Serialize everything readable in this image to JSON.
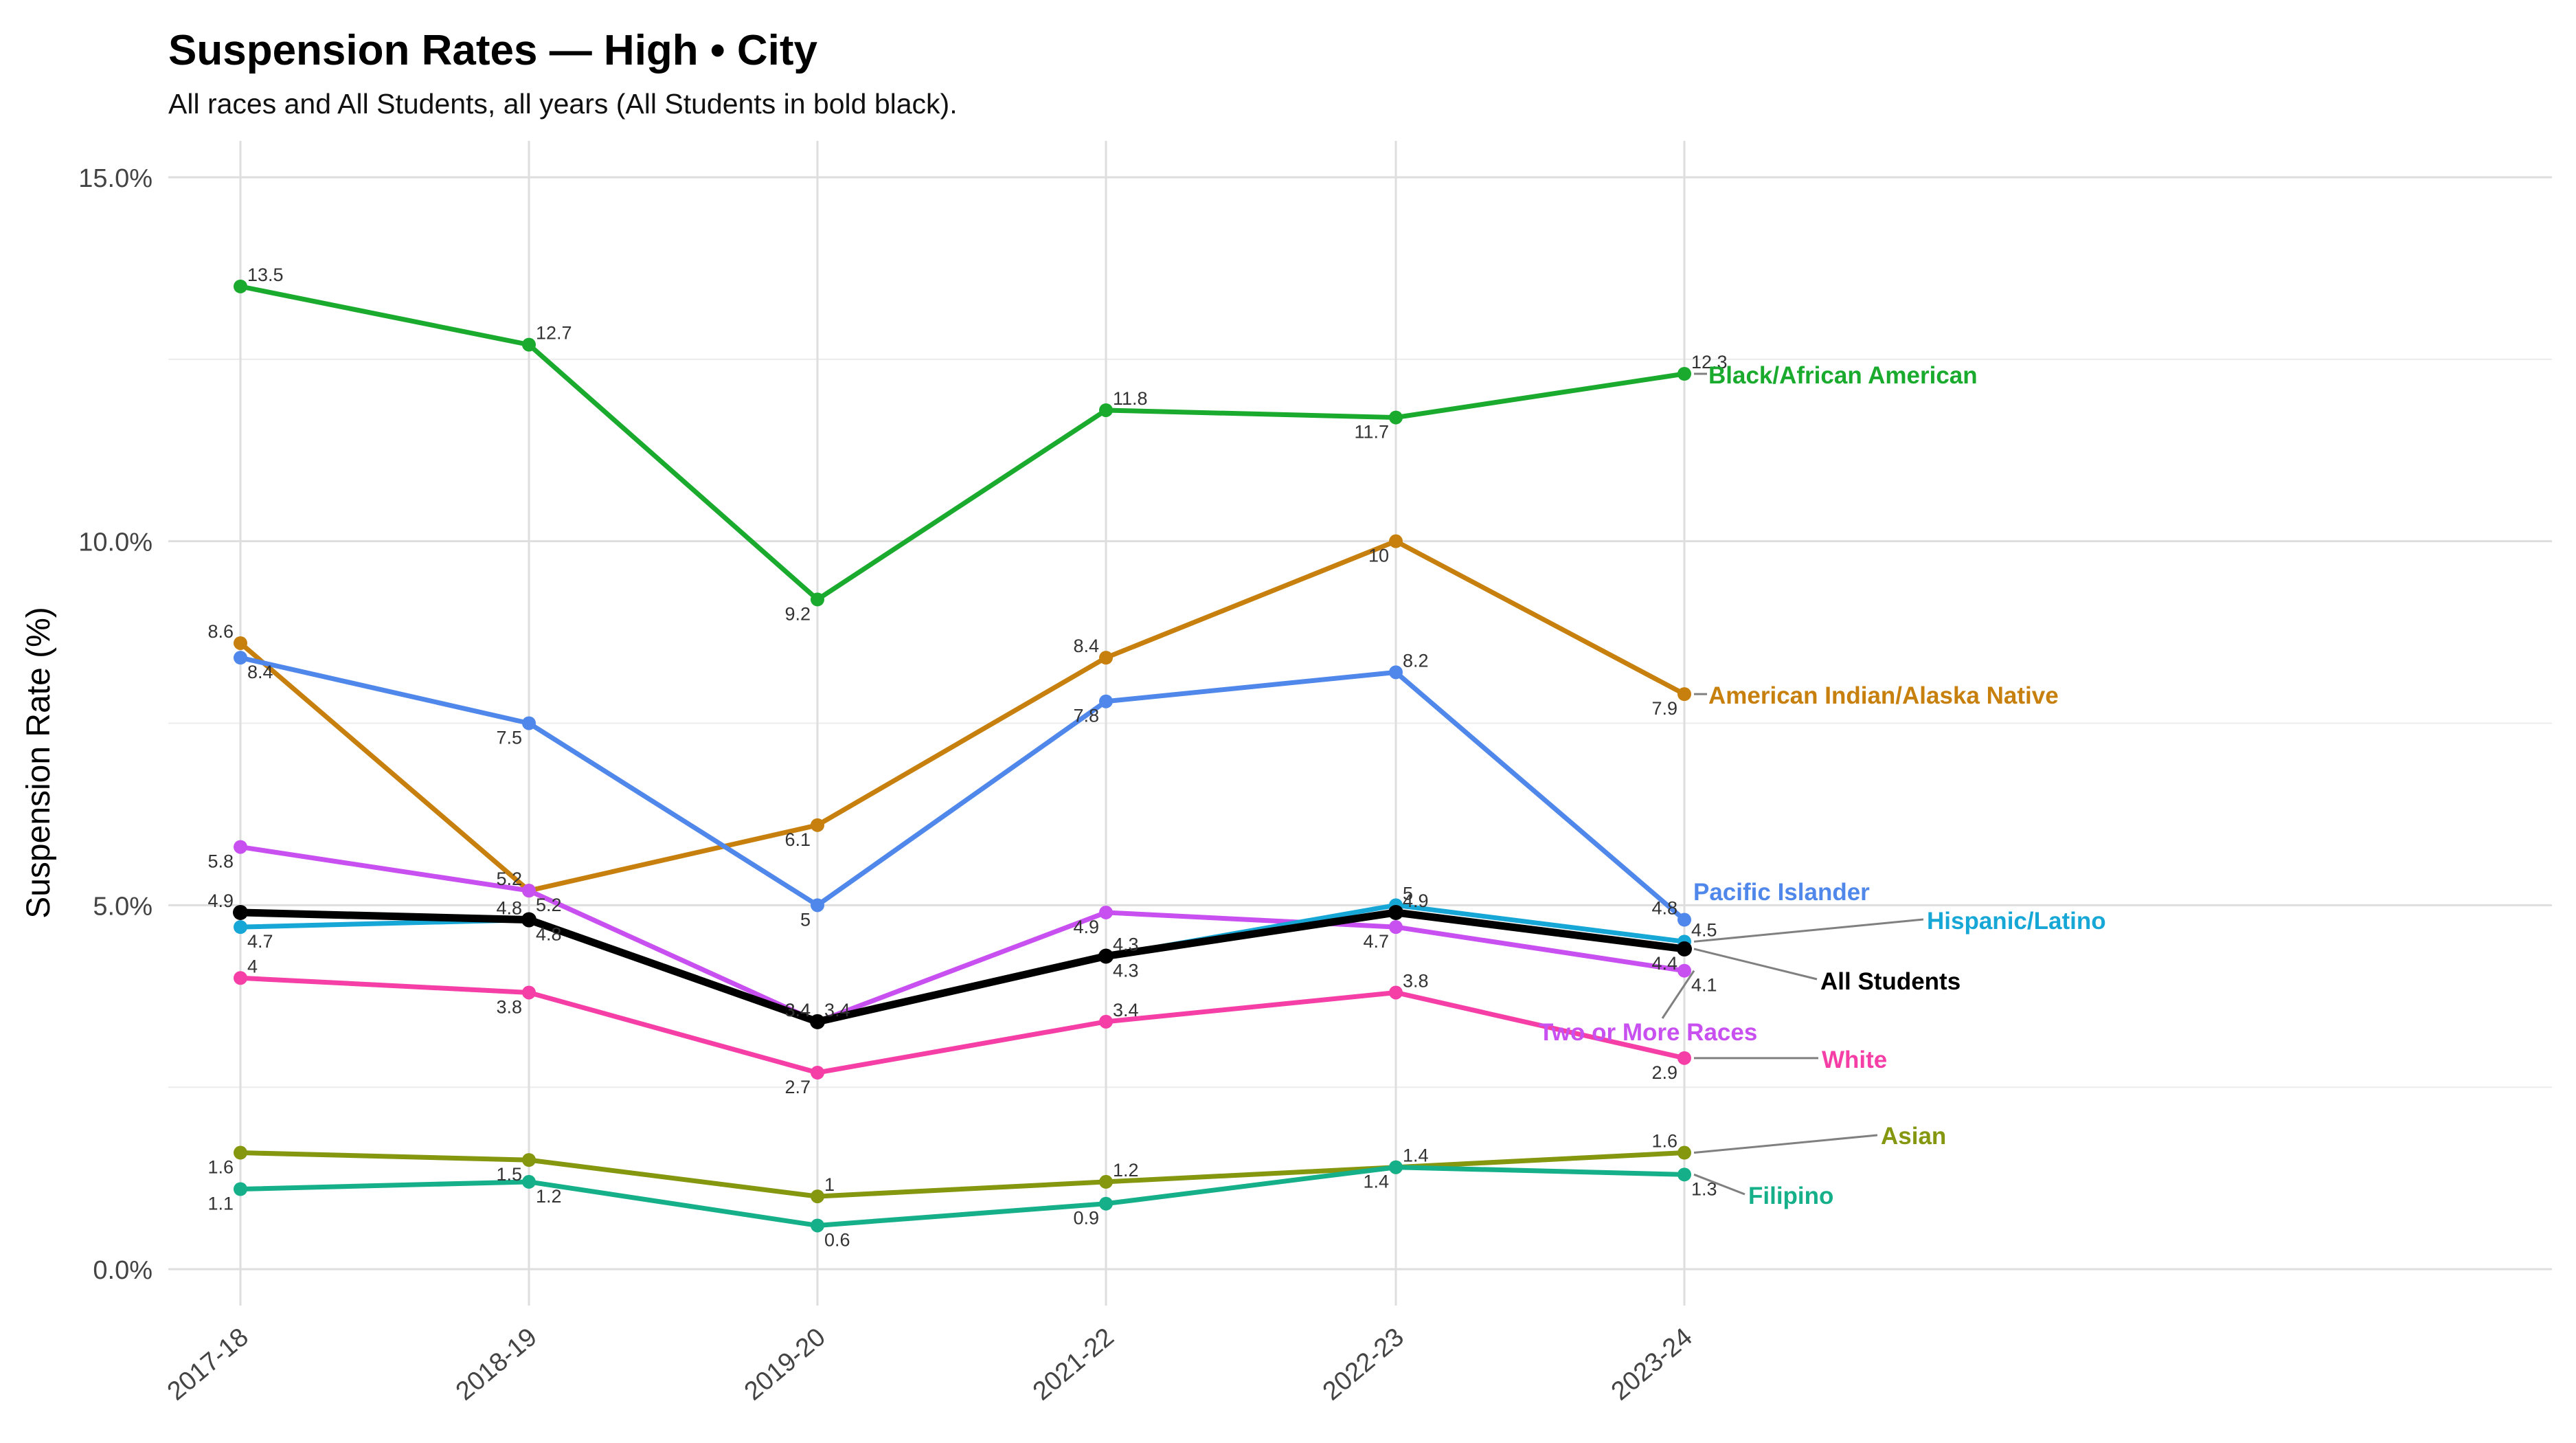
{
  "chart_data": {
    "type": "line",
    "title": "Suspension Rates — High • City",
    "subtitle": "All races and All Students, all years (All Students in bold black).",
    "xlabel": "",
    "ylabel": "Suspension Rate (%)",
    "categories": [
      "2017-18",
      "2018-19",
      "2019-20",
      "2021-22",
      "2022-23",
      "2023-24"
    ],
    "ylim": [
      -0.5,
      15.5
    ],
    "yticks": [
      0,
      5,
      10,
      15
    ],
    "ytick_labels": [
      "0.0%",
      "5.0%",
      "10.0%",
      "15.0%"
    ],
    "grid": true,
    "legend": "direct labels at line ends",
    "series": [
      {
        "name": "Black/African American",
        "color": "#1aab2e",
        "values": [
          13.5,
          12.7,
          9.2,
          11.8,
          11.7,
          12.3
        ]
      },
      {
        "name": "American Indian/Alaska Native",
        "color": "#c7800d",
        "values": [
          8.6,
          5.2,
          6.1,
          8.4,
          10,
          7.9
        ]
      },
      {
        "name": "Pacific Islander",
        "color": "#5087ea",
        "values": [
          8.4,
          7.5,
          5,
          7.8,
          8.2,
          4.8
        ]
      },
      {
        "name": "Two or More Races",
        "color": "#c84ff0",
        "values": [
          5.8,
          5.2,
          3.4,
          4.9,
          4.7,
          4.1
        ]
      },
      {
        "name": "Hispanic/Latino",
        "color": "#17a7d6",
        "values": [
          4.7,
          4.8,
          3.4,
          4.3,
          5,
          4.5
        ]
      },
      {
        "name": "All Students",
        "color": "#000000",
        "bold": true,
        "values": [
          4.9,
          4.8,
          3.4,
          4.3,
          4.9,
          4.4
        ]
      },
      {
        "name": "White",
        "color": "#f53fa6",
        "values": [
          4,
          3.8,
          2.7,
          3.4,
          3.8,
          2.9
        ]
      },
      {
        "name": "Asian",
        "color": "#85960f",
        "values": [
          1.6,
          1.5,
          1,
          1.2,
          1.4,
          1.6
        ]
      },
      {
        "name": "Filipino",
        "color": "#15b08a",
        "values": [
          1.1,
          1.2,
          0.6,
          0.9,
          1.4,
          1.3
        ]
      }
    ]
  }
}
